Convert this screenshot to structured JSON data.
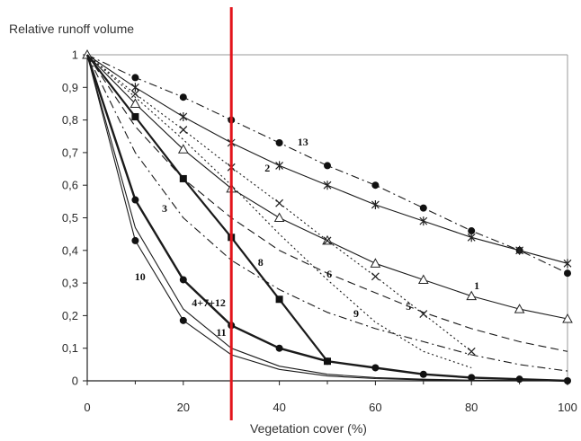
{
  "chart_data": {
    "type": "line",
    "xlabel": "Vegetation cover (%)",
    "ylabel": "Relative runoff volume",
    "xlim": [
      0,
      100
    ],
    "ylim": [
      0,
      1
    ],
    "x_ticks": [
      0,
      20,
      40,
      60,
      80,
      100
    ],
    "x_tick_labels": [
      "0",
      "20",
      "40",
      "60",
      "80",
      "100"
    ],
    "y_ticks": [
      0,
      0.1,
      0.2,
      0.3,
      0.4,
      0.5,
      0.6,
      0.7,
      0.8,
      0.9,
      1
    ],
    "y_tick_labels": [
      "0",
      "0,1",
      "0,2",
      "0,3",
      "0,4",
      "0,5",
      "0,6",
      "0,7",
      "0,8",
      "0,9",
      "1"
    ],
    "grid": false,
    "legend": "none",
    "line_color": "#1a1a1a",
    "reference_line": {
      "axis": "x",
      "x": 30,
      "color": "#e3141b"
    },
    "series": [
      {
        "name": "13",
        "x": [
          0,
          10,
          20,
          30,
          40,
          50,
          60,
          70,
          80,
          90,
          100
        ],
        "y": [
          1,
          0.93,
          0.87,
          0.8,
          0.73,
          0.66,
          0.6,
          0.53,
          0.46,
          0.4,
          0.33
        ],
        "marker": "circle-filled",
        "line": "dashdot"
      },
      {
        "name": "2",
        "x": [
          0,
          10,
          20,
          30,
          40,
          50,
          60,
          70,
          80,
          90,
          100
        ],
        "y": [
          1,
          0.9,
          0.81,
          0.73,
          0.66,
          0.6,
          0.54,
          0.49,
          0.44,
          0.4,
          0.36
        ],
        "marker": "asterisk",
        "line": "solid"
      },
      {
        "name": "1",
        "x": [
          0,
          10,
          20,
          30,
          40,
          50,
          60,
          70,
          80,
          90,
          100
        ],
        "y": [
          1,
          0.85,
          0.71,
          0.59,
          0.5,
          0.43,
          0.36,
          0.31,
          0.26,
          0.22,
          0.19
        ],
        "marker": "triangle-open",
        "line": "solid",
        "marker_x": [
          0,
          10,
          20,
          30,
          40,
          50,
          60,
          70,
          80,
          90,
          100
        ]
      },
      {
        "name": "5",
        "x": [
          0,
          10,
          20,
          30,
          40,
          50,
          60,
          70,
          80
        ],
        "y": [
          1,
          0.88,
          0.77,
          0.655,
          0.545,
          0.43,
          0.32,
          0.205,
          0.09
        ],
        "marker": "cross",
        "line": "dotted"
      },
      {
        "name": "9",
        "x": [
          0,
          10,
          20,
          30,
          40,
          50,
          60,
          70,
          80
        ],
        "y": [
          1,
          0.87,
          0.74,
          0.6,
          0.45,
          0.31,
          0.18,
          0.09,
          0.04
        ],
        "marker": "none",
        "line": "dotted"
      },
      {
        "name": "6",
        "x": [
          0,
          10,
          20,
          30,
          40,
          50,
          60,
          70,
          80,
          90,
          100
        ],
        "y": [
          1,
          0.78,
          0.62,
          0.5,
          0.4,
          0.33,
          0.27,
          0.21,
          0.16,
          0.12,
          0.09
        ],
        "marker": "none",
        "line": "dashed"
      },
      {
        "name": "3",
        "x": [
          0,
          10,
          20,
          30,
          40,
          50,
          60,
          70,
          80,
          90,
          100
        ],
        "y": [
          1,
          0.7,
          0.5,
          0.37,
          0.28,
          0.21,
          0.16,
          0.12,
          0.08,
          0.05,
          0.03
        ],
        "marker": "none",
        "line": "dashdot"
      },
      {
        "name": "8",
        "x": [
          0,
          10,
          20,
          30,
          40,
          50
        ],
        "y": [
          1,
          0.81,
          0.62,
          0.44,
          0.25,
          0.06
        ],
        "marker": "square-filled",
        "line": "solid"
      },
      {
        "name": "4+7+12",
        "x": [
          0,
          10,
          20,
          30,
          40,
          50,
          60,
          70,
          80,
          90,
          100
        ],
        "y": [
          1,
          0.555,
          0.31,
          0.17,
          0.1,
          0.06,
          0.04,
          0.02,
          0.01,
          0.005,
          0
        ],
        "marker": "circle-filled",
        "line": "solid"
      },
      {
        "name": "10",
        "x": [
          0,
          10,
          20,
          30,
          40,
          50,
          60,
          70,
          80,
          90,
          100
        ],
        "y": [
          1,
          0.43,
          0.185,
          0.08,
          0.035,
          0.015,
          0.007,
          0.003,
          0.001,
          0,
          0
        ],
        "marker": "circle-filled",
        "line": "solid",
        "marker_x": [
          10,
          20
        ]
      },
      {
        "name": "11",
        "x": [
          0,
          10,
          20,
          30,
          40,
          50,
          60,
          70,
          80,
          90,
          100
        ],
        "y": [
          1,
          0.47,
          0.22,
          0.1,
          0.045,
          0.02,
          0.01,
          0.005,
          0.002,
          0.001,
          0
        ],
        "marker": "none",
        "line": "solid"
      }
    ]
  }
}
